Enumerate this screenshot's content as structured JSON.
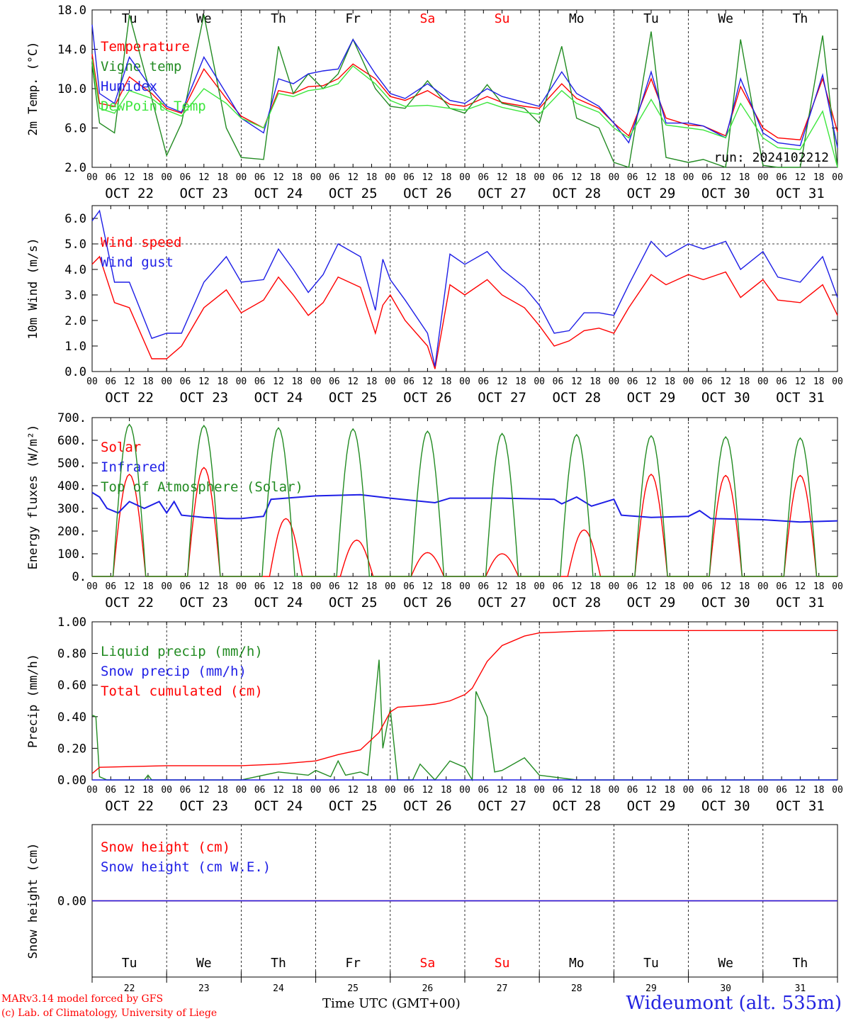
{
  "days": [
    "Tu",
    "We",
    "Th",
    "Fr",
    "Sa",
    "Su",
    "Mo",
    "Tu",
    "We",
    "Th"
  ],
  "weekend_days": [
    4,
    5
  ],
  "weekend_color": "#ff0000",
  "dates": [
    "OCT 22",
    "OCT 23",
    "OCT 24",
    "OCT 25",
    "OCT 26",
    "OCT 27",
    "OCT 28",
    "OCT 29",
    "OCT 30",
    "OCT 31"
  ],
  "day_numbers": [
    "22",
    "23",
    "24",
    "25",
    "26",
    "27",
    "28",
    "29",
    "30",
    "31"
  ],
  "hour_ticks": [
    "00",
    "06",
    "12",
    "18"
  ],
  "footer": {
    "model": "MARv3.14 model forced by GFS",
    "copyright": "(c) Lab. of Climatology, University of Liege",
    "time_label": "Time UTC (GMT+00)",
    "station": "Wideumont (alt. 535m)"
  },
  "chart_data": [
    {
      "type": "line",
      "ylabel": "2m Temp. (°C)",
      "ylim": [
        2,
        18
      ],
      "yticks": [
        "2.0",
        "6.0",
        "10.0",
        "14.0",
        "18.0"
      ],
      "annotation": "run: 2024102212",
      "series": [
        {
          "name": "Temperature",
          "color": "#ff0000",
          "x": [
            0,
            0.1,
            0.3,
            0.5,
            0.8,
            1.0,
            1.2,
            1.5,
            1.8,
            2.0,
            2.3,
            2.5,
            2.7,
            2.9,
            3.1,
            3.3,
            3.5,
            3.8,
            4.0,
            4.2,
            4.5,
            4.8,
            5.0,
            5.3,
            5.5,
            5.8,
            6.0,
            6.3,
            6.5,
            6.8,
            7.0,
            7.2,
            7.5,
            7.7,
            8.0,
            8.2,
            8.5,
            8.7,
            9.0,
            9.2,
            9.5,
            9.8,
            10.0
          ],
          "y": [
            13.5,
            8.5,
            8.2,
            11.2,
            9.5,
            8.0,
            7.5,
            12.0,
            9.0,
            7.2,
            6.0,
            9.8,
            9.5,
            10.2,
            10.3,
            11.0,
            12.5,
            11.0,
            9.2,
            8.8,
            9.8,
            8.4,
            8.2,
            9.2,
            8.6,
            8.2,
            8.0,
            10.5,
            9.0,
            8.0,
            6.5,
            5.2,
            11.0,
            7.0,
            6.3,
            6.2,
            5.2,
            10.2,
            6.0,
            5.0,
            4.8,
            11.0,
            5.6
          ]
        },
        {
          "name": "Vigne temp",
          "color": "#228b22",
          "x": [
            0,
            0.1,
            0.3,
            0.5,
            0.8,
            1.0,
            1.2,
            1.5,
            1.8,
            2.0,
            2.3,
            2.5,
            2.7,
            2.9,
            3.1,
            3.3,
            3.5,
            3.8,
            4.0,
            4.2,
            4.5,
            4.8,
            5.0,
            5.3,
            5.5,
            5.8,
            6.0,
            6.3,
            6.5,
            6.8,
            7.0,
            7.2,
            7.5,
            7.7,
            8.0,
            8.2,
            8.5,
            8.7,
            9.0,
            9.2,
            9.5,
            9.8,
            10.0
          ],
          "y": [
            12.5,
            6.5,
            5.5,
            17.5,
            9.0,
            3.2,
            6.5,
            17.5,
            6.0,
            3.0,
            2.8,
            14.3,
            9.5,
            11.5,
            10.0,
            11.5,
            15.0,
            10.0,
            8.2,
            8.0,
            10.8,
            8.0,
            7.5,
            10.4,
            8.5,
            8.0,
            6.5,
            14.3,
            7.0,
            6.0,
            2.5,
            1.8,
            15.8,
            3.0,
            2.5,
            2.8,
            2.0,
            15.0,
            2.2,
            1.5,
            1.5,
            15.4,
            1.8
          ]
        },
        {
          "name": "Humidex",
          "color": "#1e1ee6",
          "x": [
            0,
            0.1,
            0.3,
            0.5,
            0.8,
            1.0,
            1.2,
            1.5,
            1.8,
            2.0,
            2.3,
            2.5,
            2.7,
            2.9,
            3.1,
            3.3,
            3.5,
            3.8,
            4.0,
            4.2,
            4.5,
            4.8,
            5.0,
            5.3,
            5.5,
            5.8,
            6.0,
            6.3,
            6.5,
            6.8,
            7.0,
            7.2,
            7.5,
            7.7,
            8.0,
            8.2,
            8.5,
            8.7,
            9.0,
            9.2,
            9.5,
            9.8,
            10.0
          ],
          "y": [
            16.5,
            9.5,
            8.5,
            13.2,
            10.0,
            8.2,
            7.6,
            13.2,
            9.5,
            7.0,
            5.5,
            11.0,
            10.5,
            11.5,
            11.8,
            12.0,
            15.0,
            11.5,
            9.5,
            9.0,
            10.5,
            8.8,
            8.5,
            10.0,
            9.2,
            8.6,
            8.2,
            11.7,
            9.5,
            8.2,
            6.5,
            4.5,
            11.7,
            6.5,
            6.5,
            6.2,
            5.0,
            11.0,
            5.5,
            4.5,
            4.2,
            11.4,
            4.0
          ]
        },
        {
          "name": "DewPoint Temp",
          "color": "#3ce63c",
          "x": [
            0,
            0.1,
            0.3,
            0.5,
            0.8,
            1.0,
            1.2,
            1.5,
            1.8,
            2.0,
            2.3,
            2.5,
            2.7,
            2.9,
            3.1,
            3.3,
            3.5,
            3.8,
            4.0,
            4.2,
            4.5,
            4.8,
            5.0,
            5.3,
            5.5,
            5.8,
            6.0,
            6.3,
            6.5,
            6.8,
            7.0,
            7.2,
            7.5,
            7.7,
            8.0,
            8.2,
            8.5,
            8.7,
            9.0,
            9.2,
            9.5,
            9.8,
            10.0
          ],
          "y": [
            13.0,
            8.0,
            7.5,
            9.8,
            9.0,
            7.8,
            7.2,
            10.0,
            8.5,
            7.0,
            6.0,
            9.5,
            9.2,
            9.8,
            10.0,
            10.5,
            12.3,
            10.5,
            8.8,
            8.2,
            8.3,
            8.0,
            7.8,
            8.6,
            8.1,
            7.6,
            7.4,
            9.8,
            8.5,
            7.6,
            6.0,
            5.0,
            8.9,
            6.3,
            6.0,
            5.8,
            5.0,
            8.5,
            5.0,
            4.0,
            3.8,
            7.7,
            2.0
          ]
        }
      ]
    },
    {
      "type": "line",
      "ylabel": "10m Wind (m/s)",
      "ylim": [
        0,
        6.5
      ],
      "yticks": [
        "0.0",
        "1.0",
        "2.0",
        "3.0",
        "4.0",
        "5.0",
        "6.0"
      ],
      "reference_line": 5.0,
      "series": [
        {
          "name": "Wind speed",
          "color": "#ff0000",
          "x": [
            0,
            0.1,
            0.3,
            0.5,
            0.8,
            1.0,
            1.2,
            1.5,
            1.8,
            2.0,
            2.3,
            2.5,
            2.7,
            2.9,
            3.1,
            3.3,
            3.6,
            3.8,
            3.9,
            4.0,
            4.2,
            4.5,
            4.6,
            4.8,
            5.0,
            5.3,
            5.5,
            5.8,
            6.0,
            6.2,
            6.4,
            6.6,
            6.8,
            7.0,
            7.2,
            7.5,
            7.7,
            8.0,
            8.2,
            8.5,
            8.7,
            9.0,
            9.2,
            9.5,
            9.8,
            10.0
          ],
          "y": [
            4.2,
            4.5,
            2.7,
            2.5,
            0.5,
            0.5,
            1.0,
            2.5,
            3.2,
            2.3,
            2.8,
            3.7,
            3.0,
            2.2,
            2.7,
            3.7,
            3.3,
            1.5,
            2.6,
            3.0,
            2.0,
            1.0,
            0.1,
            3.4,
            3.0,
            3.6,
            3.0,
            2.5,
            1.8,
            1.0,
            1.2,
            1.6,
            1.7,
            1.5,
            2.5,
            3.8,
            3.4,
            3.8,
            3.6,
            3.9,
            2.9,
            3.6,
            2.8,
            2.7,
            3.4,
            2.2
          ]
        },
        {
          "name": "Wind gust",
          "color": "#1e1ee6",
          "x": [
            0,
            0.1,
            0.3,
            0.5,
            0.8,
            1.0,
            1.2,
            1.5,
            1.8,
            2.0,
            2.3,
            2.5,
            2.7,
            2.9,
            3.1,
            3.3,
            3.6,
            3.8,
            3.9,
            4.0,
            4.2,
            4.5,
            4.6,
            4.8,
            5.0,
            5.3,
            5.5,
            5.8,
            6.0,
            6.2,
            6.4,
            6.6,
            6.8,
            7.0,
            7.2,
            7.5,
            7.7,
            8.0,
            8.2,
            8.5,
            8.7,
            9.0,
            9.2,
            9.5,
            9.8,
            10.0
          ],
          "y": [
            5.9,
            6.3,
            3.5,
            3.5,
            1.3,
            1.5,
            1.5,
            3.5,
            4.5,
            3.5,
            3.6,
            4.8,
            4.0,
            3.1,
            3.8,
            5.0,
            4.5,
            2.4,
            4.4,
            3.6,
            2.8,
            1.5,
            0.2,
            4.6,
            4.2,
            4.7,
            4.0,
            3.3,
            2.6,
            1.5,
            1.6,
            2.3,
            2.3,
            2.2,
            3.4,
            5.1,
            4.5,
            5.0,
            4.8,
            5.1,
            4.0,
            4.7,
            3.7,
            3.5,
            4.5,
            2.9
          ]
        }
      ]
    },
    {
      "type": "line",
      "ylabel": "Energy fluxes (W/m²)",
      "ylim": [
        0,
        700
      ],
      "yticks": [
        "0.",
        "100.",
        "200.",
        "300.",
        "400.",
        "500.",
        "600.",
        "700."
      ],
      "series": [
        {
          "name": "Solar",
          "color": "#ff0000",
          "peaks": [
            450,
            480,
            255,
            160,
            105,
            100,
            205,
            450,
            445,
            445
          ],
          "peak_x": [
            0.5,
            0.5,
            0.6,
            0.55,
            0.5,
            0.5,
            0.6,
            0.5,
            0.5,
            0.5
          ]
        },
        {
          "name": "Infrared",
          "color": "#1e1ee6",
          "x": [
            0,
            0.1,
            0.2,
            0.35,
            0.5,
            0.7,
            0.9,
            1.0,
            1.1,
            1.2,
            1.5,
            1.8,
            2.0,
            2.3,
            2.4,
            3.0,
            3.6,
            4.0,
            4.6,
            4.8,
            5.5,
            6.2,
            6.3,
            6.5,
            6.7,
            7.0,
            7.1,
            7.5,
            8.0,
            8.15,
            8.3,
            9.0,
            9.5,
            10.0
          ],
          "y": [
            370,
            350,
            300,
            280,
            330,
            300,
            330,
            280,
            330,
            270,
            260,
            255,
            255,
            265,
            340,
            355,
            360,
            345,
            325,
            345,
            345,
            340,
            320,
            350,
            310,
            340,
            270,
            260,
            265,
            290,
            255,
            250,
            240,
            245
          ]
        },
        {
          "name": "Top of Atmosphere (Solar)",
          "color": "#228b22",
          "peaks": [
            670,
            665,
            655,
            650,
            640,
            630,
            625,
            620,
            615,
            610
          ],
          "peak_x": [
            0.5,
            0.5,
            0.5,
            0.5,
            0.5,
            0.5,
            0.5,
            0.5,
            0.5,
            0.5
          ]
        }
      ]
    },
    {
      "type": "line",
      "ylabel": "Precip (mm/h)",
      "ylim": [
        0,
        1.0
      ],
      "yticks": [
        "0.00",
        "0.20",
        "0.40",
        "0.60",
        "0.80",
        "1.00"
      ],
      "series": [
        {
          "name": "Liquid precip (mm/h)",
          "color": "#228b22",
          "x": [
            0,
            0.05,
            0.1,
            0.2,
            0.7,
            0.75,
            0.8,
            1.0,
            2.0,
            2.5,
            2.9,
            3.0,
            3.2,
            3.3,
            3.4,
            3.6,
            3.7,
            3.85,
            3.9,
            4.0,
            4.1,
            4.3,
            4.4,
            4.6,
            4.8,
            5.0,
            5.1,
            5.15,
            5.3,
            5.4,
            5.5,
            5.8,
            6.0,
            6.5,
            7.0,
            10.0
          ],
          "y": [
            0.41,
            0.4,
            0.02,
            0.0,
            0.0,
            0.03,
            0.0,
            0.0,
            0.0,
            0.05,
            0.03,
            0.06,
            0.02,
            0.12,
            0.03,
            0.05,
            0.03,
            0.76,
            0.2,
            0.45,
            0.0,
            0.0,
            0.1,
            0.0,
            0.12,
            0.08,
            0.0,
            0.56,
            0.4,
            0.05,
            0.06,
            0.14,
            0.03,
            0.0,
            0.0,
            0.0
          ]
        },
        {
          "name": "Snow precip (mm/h)",
          "color": "#1e1ee6",
          "x": [
            0,
            10
          ],
          "y": [
            0,
            0
          ]
        },
        {
          "name": "Total cumulated (cm)",
          "color": "#ff0000",
          "x": [
            0,
            0.1,
            1.0,
            2.0,
            2.5,
            3.0,
            3.3,
            3.6,
            3.85,
            4.0,
            4.1,
            4.4,
            4.6,
            4.8,
            5.0,
            5.1,
            5.3,
            5.5,
            5.8,
            6.0,
            6.5,
            7.0,
            10.0
          ],
          "y": [
            0.04,
            0.08,
            0.09,
            0.09,
            0.1,
            0.12,
            0.16,
            0.19,
            0.3,
            0.43,
            0.46,
            0.47,
            0.48,
            0.5,
            0.54,
            0.58,
            0.75,
            0.85,
            0.91,
            0.93,
            0.94,
            0.945,
            0.945
          ]
        }
      ]
    },
    {
      "type": "line",
      "ylabel": "Snow height (cm)",
      "ylim": [
        -1,
        1
      ],
      "yticks": [
        "0.00"
      ],
      "series": [
        {
          "name": "Snow height (cm)",
          "color": "#ff0000",
          "x": [
            0,
            10
          ],
          "y": [
            0,
            0
          ]
        },
        {
          "name": "Snow height (cm W.E.)",
          "color": "#1e1ee6",
          "x": [
            0,
            10
          ],
          "y": [
            0,
            0
          ]
        }
      ]
    }
  ]
}
